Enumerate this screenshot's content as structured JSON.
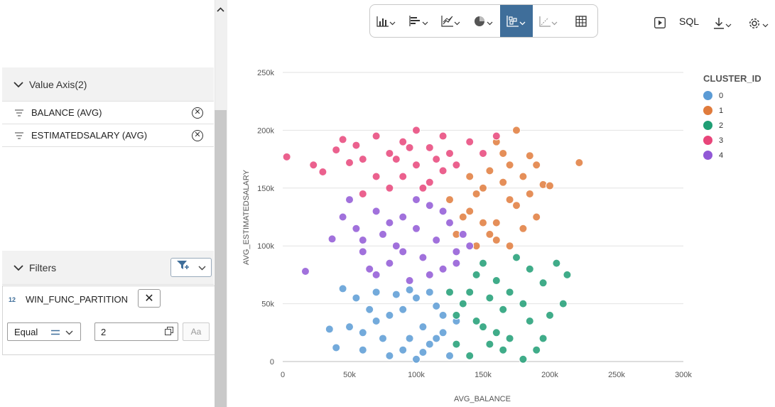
{
  "panel": {
    "value_axis_header": "Value Axis(2)",
    "value_axis_items": [
      {
        "label": "BALANCE (AVG)"
      },
      {
        "label": "ESTIMATEDSALARY (AVG)"
      }
    ],
    "filters_header": "Filters",
    "filter": {
      "type_badge": "12",
      "field": "WIN_FUNC_PARTITION",
      "operator": "Equal",
      "value": "2",
      "case_label": "Aa"
    }
  },
  "toolbar": {
    "buttons": [
      "bar-chart-icon",
      "horizontal-bar-chart-icon",
      "line-chart-icon",
      "pie-chart-icon",
      "scatter-chart-icon",
      "axis-chart-icon",
      "table-icon"
    ],
    "active": "scatter-chart-icon",
    "sql_label": "SQL",
    "accent": "#3f6e9a"
  },
  "chart_data": {
    "type": "scatter",
    "xlabel": "AVG_BALANCE",
    "ylabel": "AVG_ESTIMATEDSALARY",
    "xlim": [
      0,
      300000
    ],
    "ylim": [
      0,
      250000
    ],
    "xticks": [
      0,
      50000,
      100000,
      150000,
      200000,
      250000,
      300000
    ],
    "xtick_labels": [
      "0",
      "50k",
      "100k",
      "150k",
      "200k",
      "250k",
      "300k"
    ],
    "yticks": [
      0,
      50000,
      100000,
      150000,
      200000,
      250000
    ],
    "ytick_labels": [
      "0",
      "50k",
      "100k",
      "150k",
      "200k",
      "250k"
    ],
    "legend_title": "CLUSTER_ID",
    "legend_position": "right",
    "grid": "horizontal",
    "series": [
      {
        "name": "0",
        "color": "#5b9bd5",
        "points": [
          [
            60000,
            10000
          ],
          [
            70000,
            35000
          ],
          [
            80000,
            5000
          ],
          [
            90000,
            45000
          ],
          [
            95000,
            20000
          ],
          [
            100000,
            55000
          ],
          [
            105000,
            30000
          ],
          [
            110000,
            15000
          ],
          [
            115000,
            48000
          ],
          [
            120000,
            25000
          ],
          [
            125000,
            5000
          ],
          [
            85000,
            58000
          ],
          [
            75000,
            20000
          ],
          [
            65000,
            45000
          ],
          [
            50000,
            30000
          ],
          [
            45000,
            63000
          ],
          [
            35000,
            28000
          ],
          [
            40000,
            12000
          ],
          [
            55000,
            55000
          ],
          [
            100000,
            2000
          ],
          [
            120000,
            40000
          ],
          [
            110000,
            60000
          ],
          [
            90000,
            10000
          ],
          [
            130000,
            35000
          ],
          [
            70000,
            60000
          ],
          [
            80000,
            40000
          ],
          [
            60000,
            25000
          ],
          [
            95000,
            62000
          ],
          [
            105000,
            8000
          ],
          [
            115000,
            20000
          ]
        ]
      },
      {
        "name": "1",
        "color": "#e07b3c",
        "points": [
          [
            130000,
            110000
          ],
          [
            140000,
            130000
          ],
          [
            150000,
            150000
          ],
          [
            160000,
            120000
          ],
          [
            170000,
            140000
          ],
          [
            180000,
            160000
          ],
          [
            190000,
            170000
          ],
          [
            175000,
            200000
          ],
          [
            165000,
            180000
          ],
          [
            155000,
            165000
          ],
          [
            145000,
            145000
          ],
          [
            135000,
            125000
          ],
          [
            160000,
            105000
          ],
          [
            170000,
            100000
          ],
          [
            180000,
            115000
          ],
          [
            190000,
            125000
          ],
          [
            195000,
            153000
          ],
          [
            200000,
            152000
          ],
          [
            222000,
            172000
          ],
          [
            185000,
            178000
          ],
          [
            175000,
            135000
          ],
          [
            150000,
            120000
          ],
          [
            140000,
            160000
          ],
          [
            165000,
            155000
          ],
          [
            155000,
            110000
          ],
          [
            145000,
            100000
          ],
          [
            185000,
            145000
          ],
          [
            125000,
            140000
          ],
          [
            160000,
            190000
          ],
          [
            170000,
            170000
          ]
        ]
      },
      {
        "name": "2",
        "color": "#1f9e74",
        "points": [
          [
            130000,
            40000
          ],
          [
            140000,
            60000
          ],
          [
            150000,
            30000
          ],
          [
            160000,
            70000
          ],
          [
            170000,
            20000
          ],
          [
            180000,
            50000
          ],
          [
            190000,
            10000
          ],
          [
            200000,
            40000
          ],
          [
            210000,
            50000
          ],
          [
            213000,
            75000
          ],
          [
            205000,
            85000
          ],
          [
            195000,
            68000
          ],
          [
            185000,
            80000
          ],
          [
            175000,
            90000
          ],
          [
            165000,
            45000
          ],
          [
            155000,
            15000
          ],
          [
            145000,
            75000
          ],
          [
            135000,
            50000
          ],
          [
            125000,
            60000
          ],
          [
            140000,
            5000
          ],
          [
            150000,
            85000
          ],
          [
            160000,
            25000
          ],
          [
            170000,
            60000
          ],
          [
            180000,
            2000
          ],
          [
            195000,
            20000
          ],
          [
            185000,
            35000
          ],
          [
            165000,
            10000
          ],
          [
            155000,
            55000
          ],
          [
            145000,
            35000
          ],
          [
            130000,
            15000
          ]
        ]
      },
      {
        "name": "3",
        "color": "#e8457a",
        "points": [
          [
            3000,
            177000
          ],
          [
            23000,
            170000
          ],
          [
            30000,
            164000
          ],
          [
            40000,
            183000
          ],
          [
            45000,
            192000
          ],
          [
            55000,
            187000
          ],
          [
            60000,
            175000
          ],
          [
            70000,
            195000
          ],
          [
            80000,
            180000
          ],
          [
            90000,
            190000
          ],
          [
            100000,
            200000
          ],
          [
            110000,
            185000
          ],
          [
            120000,
            195000
          ],
          [
            130000,
            170000
          ],
          [
            140000,
            190000
          ],
          [
            150000,
            180000
          ],
          [
            160000,
            195000
          ],
          [
            100000,
            170000
          ],
          [
            90000,
            160000
          ],
          [
            80000,
            150000
          ],
          [
            110000,
            155000
          ],
          [
            120000,
            165000
          ],
          [
            60000,
            145000
          ],
          [
            70000,
            160000
          ],
          [
            50000,
            172000
          ],
          [
            85000,
            175000
          ],
          [
            95000,
            185000
          ],
          [
            115000,
            175000
          ],
          [
            105000,
            150000
          ],
          [
            125000,
            180000
          ]
        ]
      },
      {
        "name": "4",
        "color": "#9158d6",
        "points": [
          [
            17000,
            78000
          ],
          [
            37000,
            106000
          ],
          [
            45000,
            125000
          ],
          [
            50000,
            140000
          ],
          [
            55000,
            115000
          ],
          [
            60000,
            95000
          ],
          [
            65000,
            80000
          ],
          [
            70000,
            130000
          ],
          [
            75000,
            110000
          ],
          [
            80000,
            85000
          ],
          [
            85000,
            100000
          ],
          [
            90000,
            125000
          ],
          [
            95000,
            70000
          ],
          [
            100000,
            115000
          ],
          [
            105000,
            90000
          ],
          [
            110000,
            135000
          ],
          [
            115000,
            105000
          ],
          [
            120000,
            80000
          ],
          [
            125000,
            120000
          ],
          [
            130000,
            95000
          ],
          [
            135000,
            110000
          ],
          [
            140000,
            100000
          ],
          [
            100000,
            140000
          ],
          [
            90000,
            95000
          ],
          [
            80000,
            120000
          ],
          [
            70000,
            75000
          ],
          [
            60000,
            105000
          ],
          [
            110000,
            75000
          ],
          [
            120000,
            130000
          ],
          [
            130000,
            85000
          ]
        ]
      }
    ]
  }
}
